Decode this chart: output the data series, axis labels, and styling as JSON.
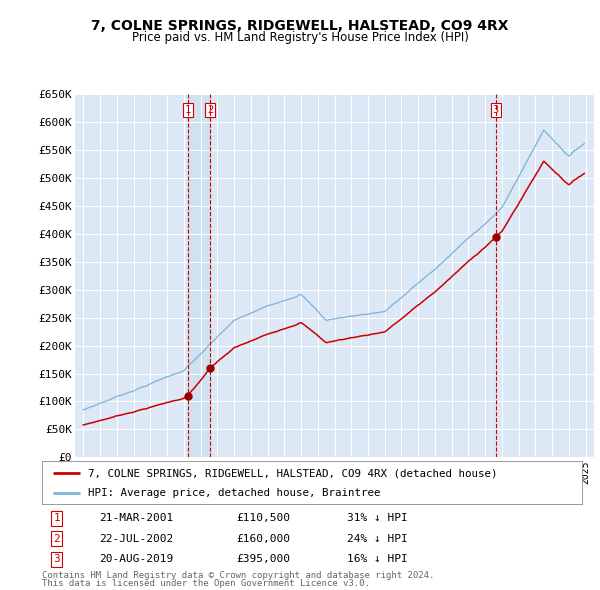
{
  "title": "7, COLNE SPRINGS, RIDGEWELL, HALSTEAD, CO9 4RX",
  "subtitle": "Price paid vs. HM Land Registry's House Price Index (HPI)",
  "ylabel_ticks": [
    "£0",
    "£50K",
    "£100K",
    "£150K",
    "£200K",
    "£250K",
    "£300K",
    "£350K",
    "£400K",
    "£450K",
    "£500K",
    "£550K",
    "£600K",
    "£650K"
  ],
  "ytick_values": [
    0,
    50000,
    100000,
    150000,
    200000,
    250000,
    300000,
    350000,
    400000,
    450000,
    500000,
    550000,
    600000,
    650000
  ],
  "xmin": 1994.5,
  "xmax": 2025.5,
  "ymin": 0,
  "ymax": 650000,
  "hpi_color": "#7ab3d8",
  "sale_color": "#cc0000",
  "transaction_color": "#cc0000",
  "plot_bg_color": "#dce8f5",
  "grid_color": "#ffffff",
  "transactions": [
    {
      "id": 1,
      "date_str": "21-MAR-2001",
      "date_x": 2001.22,
      "price": 110500,
      "pct": "31%",
      "direction": "↓"
    },
    {
      "id": 2,
      "date_str": "22-JUL-2002",
      "date_x": 2002.56,
      "price": 160000,
      "pct": "24%",
      "direction": "↓"
    },
    {
      "id": 3,
      "date_str": "20-AUG-2019",
      "date_x": 2019.64,
      "price": 395000,
      "pct": "16%",
      "direction": "↓"
    }
  ],
  "legend_sale_label": "7, COLNE SPRINGS, RIDGEWELL, HALSTEAD, CO9 4RX (detached house)",
  "legend_hpi_label": "HPI: Average price, detached house, Braintree",
  "footer1": "Contains HM Land Registry data © Crown copyright and database right 2024.",
  "footer2": "This data is licensed under the Open Government Licence v3.0.",
  "table_rows": [
    {
      "id": "1",
      "date": "21-MAR-2001",
      "price": "£110,500",
      "pct": "31% ↓ HPI"
    },
    {
      "id": "2",
      "date": "22-JUL-2002",
      "price": "£160,000",
      "pct": "24% ↓ HPI"
    },
    {
      "id": "3",
      "date": "20-AUG-2019",
      "price": "£395,000",
      "pct": "16% ↓ HPI"
    }
  ]
}
